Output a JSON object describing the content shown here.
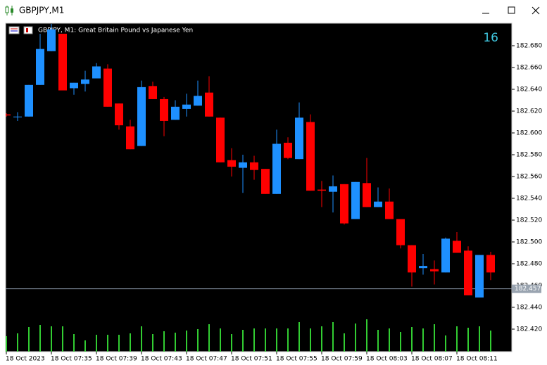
{
  "window_title": "GBPJPY,M1",
  "chart_data": {
    "type": "candlestick",
    "title": "GBPJPY, M1:  Great Britain Pound vs Japanese Yen",
    "countdown": 16,
    "current_price": 182.457,
    "categories": [
      "18 Oct 2023",
      null,
      null,
      null,
      "18 Oct 07:35",
      null,
      null,
      null,
      "18 Oct 07:39",
      null,
      null,
      null,
      "18 Oct 07:43",
      null,
      null,
      null,
      "18 Oct 07:47",
      null,
      null,
      null,
      "18 Oct 07:51",
      null,
      null,
      null,
      "18 Oct 07:55",
      null,
      null,
      null,
      "18 Oct 07:59",
      null,
      null,
      null,
      "18 Oct 08:03",
      null,
      null,
      null,
      "18 Oct 08:07",
      null,
      null,
      null,
      "18 Oct 08:11",
      null,
      null,
      null
    ],
    "open": [
      182.617,
      182.615,
      182.615,
      182.644,
      182.675,
      182.691,
      182.641,
      182.645,
      182.65,
      182.659,
      182.627,
      182.606,
      182.588,
      182.643,
      182.631,
      182.612,
      182.622,
      182.625,
      182.637,
      182.614,
      182.575,
      182.568,
      182.573,
      182.567,
      182.544,
      182.591,
      182.576,
      182.61,
      182.548,
      182.546,
      182.553,
      182.521,
      182.554,
      182.532,
      182.537,
      182.521,
      182.497,
      182.476,
      182.475,
      182.472,
      182.501,
      182.492,
      182.449,
      182.488
    ],
    "high": [
      182.618,
      182.619,
      182.644,
      182.691,
      182.7,
      182.691,
      182.646,
      182.657,
      182.664,
      182.663,
      182.627,
      182.612,
      182.648,
      182.647,
      182.633,
      182.63,
      182.636,
      182.648,
      182.652,
      182.614,
      182.586,
      182.58,
      182.579,
      182.567,
      182.603,
      182.596,
      182.628,
      182.617,
      182.556,
      182.561,
      182.553,
      182.555,
      182.577,
      182.55,
      182.549,
      182.521,
      182.497,
      182.489,
      182.483,
      182.504,
      182.509,
      182.496,
      182.488,
      182.491
    ],
    "low": [
      182.615,
      182.611,
      182.615,
      182.644,
      182.675,
      182.639,
      182.635,
      182.638,
      182.65,
      182.624,
      182.603,
      182.585,
      182.588,
      182.631,
      182.597,
      182.612,
      182.615,
      182.625,
      182.615,
      182.573,
      182.56,
      182.545,
      182.557,
      182.544,
      182.544,
      182.576,
      182.576,
      182.547,
      182.532,
      182.527,
      182.516,
      182.521,
      182.532,
      182.532,
      182.521,
      182.494,
      182.459,
      182.47,
      182.461,
      182.472,
      182.49,
      182.451,
      182.449,
      182.465
    ],
    "close": [
      182.616,
      182.615,
      182.644,
      182.677,
      182.695,
      182.639,
      182.646,
      182.649,
      182.661,
      182.624,
      182.607,
      182.585,
      182.642,
      182.631,
      182.611,
      182.624,
      182.626,
      182.634,
      182.615,
      182.573,
      182.569,
      182.573,
      182.566,
      182.544,
      182.59,
      182.577,
      182.614,
      182.547,
      182.547,
      182.551,
      182.517,
      182.555,
      182.532,
      182.537,
      182.521,
      182.497,
      182.472,
      182.478,
      182.473,
      182.503,
      182.49,
      182.451,
      182.488,
      182.472
    ],
    "volume": [
      22,
      26,
      35,
      38,
      36,
      36,
      25,
      16,
      24,
      24,
      24,
      26,
      36,
      25,
      29,
      27,
      30,
      32,
      39,
      33,
      25,
      31,
      33,
      33,
      33,
      33,
      42,
      33,
      36,
      42,
      26,
      40,
      46,
      31,
      33,
      28,
      35,
      33,
      39,
      23,
      36,
      34,
      36,
      30
    ],
    "volume_ylim": [
      0,
      100
    ],
    "up_color": "#1e90ff",
    "down_color": "#ff0000",
    "volume_color": "#32cd32",
    "ylim": [
      182.4,
      182.7
    ],
    "yticks": [
      {
        "value": 182.68,
        "label": "182.680"
      },
      {
        "value": 182.66,
        "label": "182.660"
      },
      {
        "value": 182.64,
        "label": "182.640"
      },
      {
        "value": 182.62,
        "label": "182.620"
      },
      {
        "value": 182.6,
        "label": "182.600"
      },
      {
        "value": 182.58,
        "label": "182.580"
      },
      {
        "value": 182.56,
        "label": "182.560"
      },
      {
        "value": 182.54,
        "label": "182.540"
      },
      {
        "value": 182.52,
        "label": "182.520"
      },
      {
        "value": 182.5,
        "label": "182.500"
      },
      {
        "value": 182.48,
        "label": "182.480"
      },
      {
        "value": 182.46,
        "label": "182.460"
      },
      {
        "value": 182.44,
        "label": "182.440"
      },
      {
        "value": 182.42,
        "label": "182.420"
      }
    ]
  }
}
